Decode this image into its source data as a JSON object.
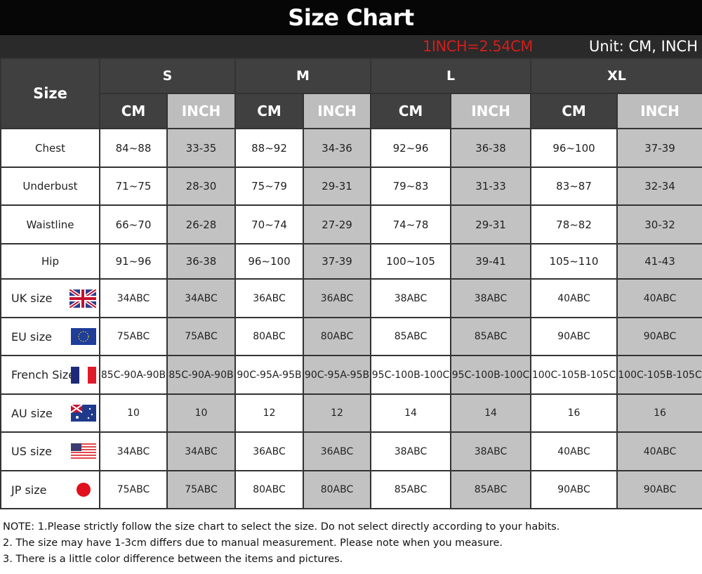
{
  "title": "Size Chart",
  "conversion": "1INCH=2.54CM",
  "unit": "Unit: CM, INCH",
  "colors": {
    "header_dark": "#404040",
    "inch_gray": "#c2c2c2",
    "conversion_red": "#d21e1e"
  },
  "header": {
    "size_label": "Size",
    "sizes": [
      "S",
      "M",
      "L",
      "XL"
    ],
    "cm": "CM",
    "inch": "INCH"
  },
  "measurements": [
    {
      "label": "Chest",
      "values": [
        "84~88",
        "33-35",
        "88~92",
        "34-36",
        "92~96",
        "36-38",
        "96~100",
        "37-39"
      ]
    },
    {
      "label": "Underbust",
      "values": [
        "71~75",
        "28-30",
        "75~79",
        "29-31",
        "79~83",
        "31-33",
        "83~87",
        "32-34"
      ]
    },
    {
      "label": "Waistline",
      "values": [
        "66~70",
        "26-28",
        "70~74",
        "27-29",
        "74~78",
        "29-31",
        "78~82",
        "30-32"
      ]
    },
    {
      "label": "Hip",
      "values": [
        "91~96",
        "36-38",
        "96~100",
        "37-39",
        "100~105",
        "39-41",
        "105~110",
        "41-43"
      ]
    }
  ],
  "regional": [
    {
      "label": "UK size",
      "flag": "uk-flag",
      "values": [
        "34ABC",
        "34ABC",
        "36ABC",
        "36ABC",
        "38ABC",
        "38ABC",
        "40ABC",
        "40ABC"
      ]
    },
    {
      "label": "EU size",
      "flag": "eu-flag",
      "values": [
        "75ABC",
        "75ABC",
        "80ABC",
        "80ABC",
        "85ABC",
        "85ABC",
        "90ABC",
        "90ABC"
      ]
    },
    {
      "label": "French Size",
      "flag": "france-flag",
      "values": [
        "85C-90A-90B",
        "85C-90A-90B",
        "90C-95A-95B",
        "90C-95A-95B",
        "95C-100B-100C",
        "95C-100B-100C",
        "100C-105B-105C",
        "100C-105B-105C"
      ]
    },
    {
      "label": "AU size",
      "flag": "australia-flag",
      "values": [
        "10",
        "10",
        "12",
        "12",
        "14",
        "14",
        "16",
        "16"
      ]
    },
    {
      "label": "US size",
      "flag": "us-flag",
      "values": [
        "34ABC",
        "34ABC",
        "36ABC",
        "36ABC",
        "38ABC",
        "38ABC",
        "40ABC",
        "40ABC"
      ]
    },
    {
      "label": "JP size",
      "flag": "japan-flag",
      "values": [
        "75ABC",
        "75ABC",
        "80ABC",
        "80ABC",
        "85ABC",
        "85ABC",
        "90ABC",
        "90ABC"
      ]
    }
  ],
  "notes": [
    "NOTE: 1.Please strictly follow the size chart to select the size. Do not select directly according to your habits.",
    "2. The size may have 1-3cm differs due to manual measurement. Please note when you measure.",
    "3. There is a little color difference between the items and pictures."
  ]
}
